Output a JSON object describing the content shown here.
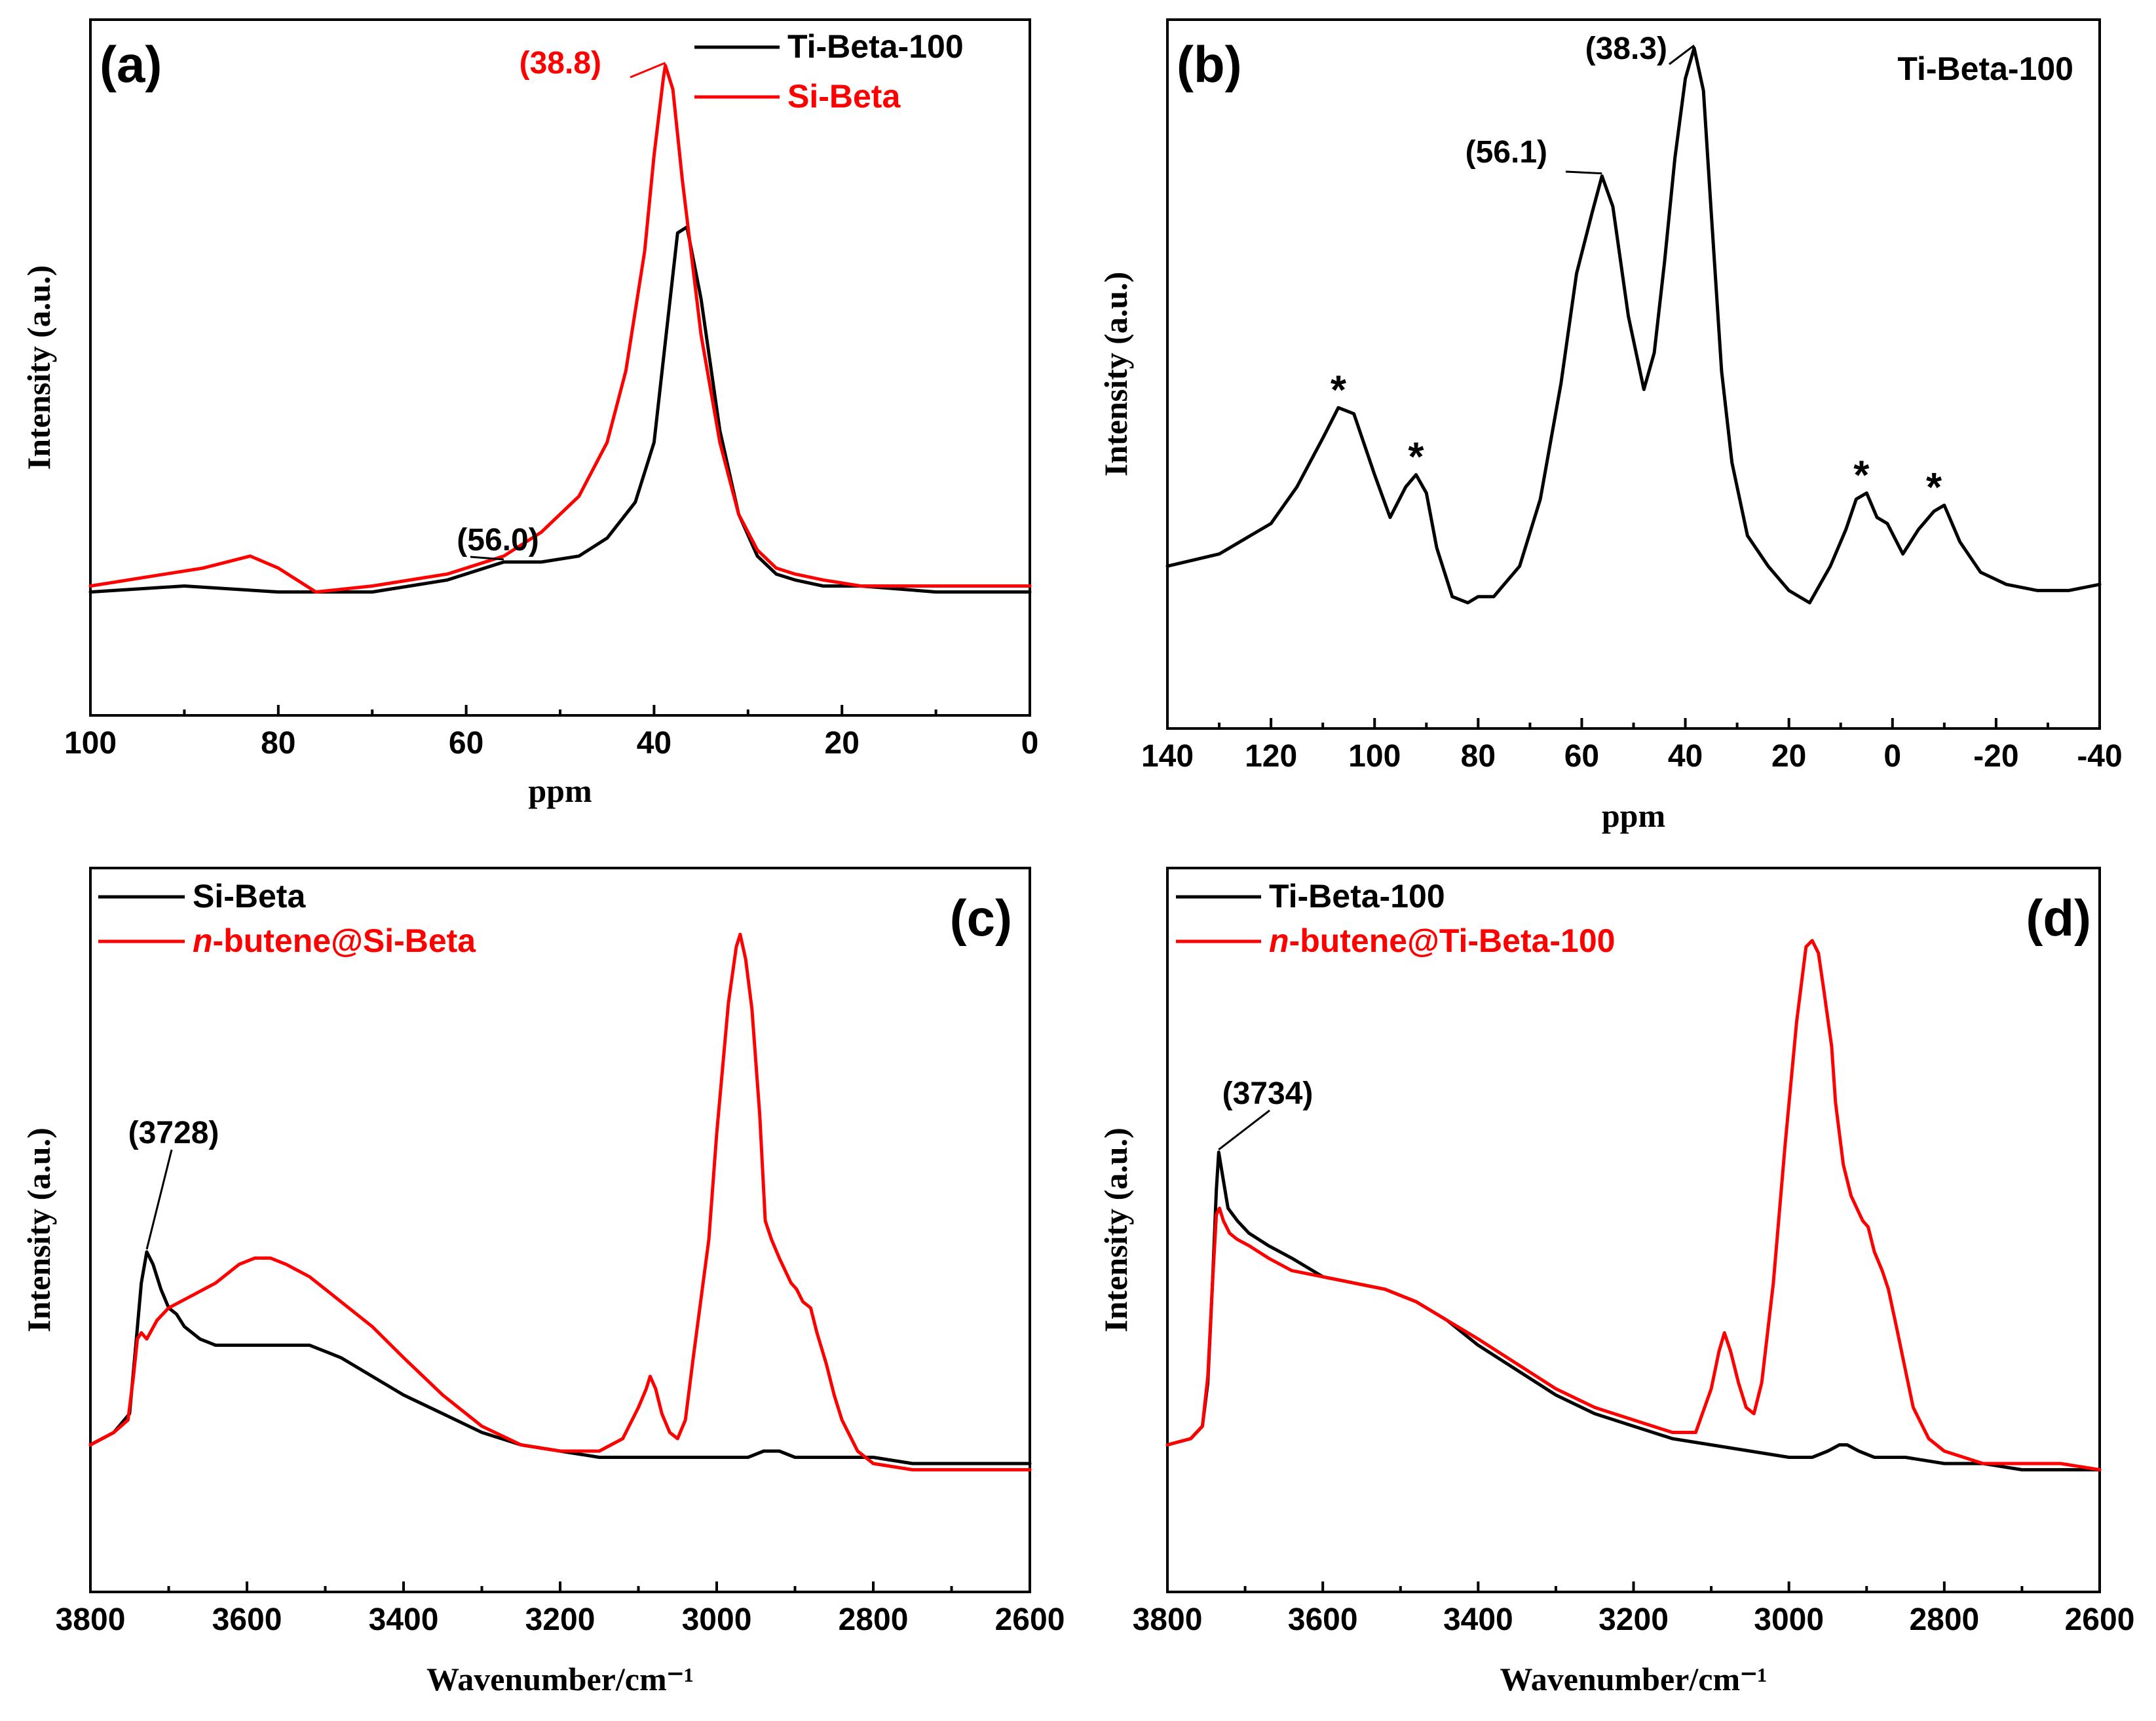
{
  "colors": {
    "black_series": "#000000",
    "red_series": "#ff0000",
    "axis": "#000000"
  },
  "chart_data": [
    {
      "id": "a",
      "type": "line",
      "panel_label": "(a)",
      "title": "",
      "xlabel": "ppm",
      "ylabel": "Intensity (a.u.)",
      "xlim": [
        100,
        0
      ],
      "ylim": [
        0,
        1
      ],
      "xticks": [
        100,
        80,
        60,
        40,
        20,
        0
      ],
      "xtick_labels": [
        "100",
        "80",
        "60",
        "40",
        "20",
        "0"
      ],
      "legend_position": "top-right",
      "grid": false,
      "series": [
        {
          "name": "Ti-Beta-100",
          "color": "#000000",
          "x": [
            100,
            90,
            80,
            70,
            62,
            56,
            52,
            48,
            45,
            42,
            40,
            38.5,
            37.5,
            36.5,
            35,
            33,
            31,
            29,
            27,
            25,
            22,
            18,
            10,
            0
          ],
          "y": [
            0.09,
            0.1,
            0.09,
            0.09,
            0.11,
            0.14,
            0.14,
            0.15,
            0.18,
            0.24,
            0.34,
            0.55,
            0.69,
            0.7,
            0.58,
            0.36,
            0.22,
            0.15,
            0.12,
            0.11,
            0.1,
            0.1,
            0.09,
            0.09
          ]
        },
        {
          "name": "Si-Beta",
          "color": "#ff0000",
          "x": [
            100,
            92,
            88,
            83,
            80,
            76,
            70,
            62,
            56,
            52,
            48,
            45,
            43,
            41,
            40,
            39,
            38.8,
            38,
            37,
            35,
            33,
            31,
            29,
            27,
            25,
            22,
            18,
            10,
            0
          ],
          "y": [
            0.1,
            0.12,
            0.13,
            0.15,
            0.13,
            0.09,
            0.1,
            0.12,
            0.15,
            0.19,
            0.25,
            0.34,
            0.46,
            0.66,
            0.82,
            0.95,
            0.97,
            0.93,
            0.78,
            0.52,
            0.34,
            0.22,
            0.16,
            0.13,
            0.12,
            0.11,
            0.1,
            0.1,
            0.1
          ]
        }
      ],
      "annotations": [
        {
          "text": "(38.8)",
          "x": 38.8,
          "y": 0.97,
          "color": "#ff0000"
        },
        {
          "text": "(56.0)",
          "x": 56.0,
          "y": 0.14,
          "color": "#000000"
        }
      ]
    },
    {
      "id": "b",
      "type": "line",
      "panel_label": "(b)",
      "title": "",
      "xlabel": "ppm",
      "ylabel": "Intensity (a.u.)",
      "xlim": [
        140,
        -40
      ],
      "ylim": [
        0,
        1
      ],
      "xticks": [
        140,
        120,
        100,
        80,
        60,
        40,
        20,
        0,
        -20,
        -40
      ],
      "xtick_labels": [
        "140",
        "120",
        "100",
        "80",
        "60",
        "40",
        "20",
        "0",
        "-20",
        "-40"
      ],
      "legend_position": "top-right",
      "legend_entries": [
        "Ti-Beta-100"
      ],
      "grid": false,
      "series": [
        {
          "name": "Ti-Beta-100",
          "color": "#000000",
          "x": [
            140,
            130,
            120,
            115,
            110,
            107,
            104,
            100,
            97,
            94,
            92,
            90,
            88,
            85,
            82,
            80,
            77,
            72,
            68,
            64,
            61,
            58,
            56.1,
            54,
            51,
            48,
            46,
            44,
            42,
            40,
            38.3,
            36.5,
            35,
            33,
            31,
            28,
            24,
            20,
            16,
            12,
            9,
            7,
            5,
            3,
            1,
            -2,
            -5,
            -8,
            -10,
            -13,
            -17,
            -22,
            -28,
            -34,
            -40
          ],
          "y": [
            0.15,
            0.17,
            0.22,
            0.28,
            0.36,
            0.41,
            0.4,
            0.3,
            0.23,
            0.28,
            0.3,
            0.27,
            0.18,
            0.1,
            0.09,
            0.1,
            0.1,
            0.15,
            0.26,
            0.45,
            0.63,
            0.73,
            0.79,
            0.74,
            0.56,
            0.44,
            0.5,
            0.65,
            0.82,
            0.95,
            1.0,
            0.93,
            0.73,
            0.47,
            0.32,
            0.2,
            0.15,
            0.11,
            0.09,
            0.15,
            0.21,
            0.26,
            0.27,
            0.23,
            0.22,
            0.17,
            0.21,
            0.24,
            0.25,
            0.19,
            0.14,
            0.12,
            0.11,
            0.11,
            0.12
          ]
        }
      ],
      "annotations": [
        {
          "text": "(38.3)",
          "x": 38.3,
          "y": 1.0,
          "color": "#000000"
        },
        {
          "text": "(56.1)",
          "x": 56.1,
          "y": 0.79,
          "color": "#000000"
        }
      ],
      "star_markers": [
        {
          "text": "*",
          "x": 107,
          "y": 0.41
        },
        {
          "text": "*",
          "x": 92,
          "y": 0.3
        },
        {
          "text": "*",
          "x": 6,
          "y": 0.27
        },
        {
          "text": "*",
          "x": -8,
          "y": 0.25
        }
      ]
    },
    {
      "id": "c",
      "type": "line",
      "panel_label": "(c)",
      "title": "",
      "xlabel": "Wavenumber/cm⁻¹",
      "ylabel": "Intensity (a.u.)",
      "xlim": [
        3800,
        2600
      ],
      "ylim": [
        0,
        1
      ],
      "xticks": [
        3800,
        3600,
        3400,
        3200,
        3000,
        2800,
        2600
      ],
      "xtick_labels": [
        "3800",
        "3600",
        "3400",
        "3200",
        "3000",
        "2800",
        "2600"
      ],
      "legend_position": "top-left",
      "grid": false,
      "series": [
        {
          "name": "Si-Beta",
          "label_prefix": "",
          "label_main": "Si-Beta",
          "color": "#000000",
          "x": [
            3800,
            3770,
            3750,
            3742,
            3735,
            3728,
            3720,
            3710,
            3700,
            3690,
            3680,
            3660,
            3640,
            3600,
            3560,
            3520,
            3480,
            3440,
            3400,
            3350,
            3300,
            3250,
            3200,
            3150,
            3100,
            3050,
            3000,
            2960,
            2940,
            2930,
            2920,
            2900,
            2880,
            2860,
            2840,
            2800,
            2750,
            2700,
            2650,
            2600
          ],
          "y": [
            0.12,
            0.14,
            0.17,
            0.28,
            0.38,
            0.43,
            0.41,
            0.37,
            0.34,
            0.33,
            0.31,
            0.29,
            0.28,
            0.28,
            0.28,
            0.28,
            0.26,
            0.23,
            0.2,
            0.17,
            0.14,
            0.12,
            0.11,
            0.1,
            0.1,
            0.1,
            0.1,
            0.1,
            0.11,
            0.11,
            0.11,
            0.1,
            0.1,
            0.1,
            0.1,
            0.1,
            0.09,
            0.09,
            0.09,
            0.09
          ]
        },
        {
          "name": "n-butene@Si-Beta",
          "label_prefix": "n",
          "label_main": "-butene@Si-Beta",
          "color": "#ff0000",
          "x": [
            3800,
            3770,
            3752,
            3745,
            3740,
            3735,
            3728,
            3715,
            3700,
            3670,
            3640,
            3610,
            3590,
            3570,
            3550,
            3520,
            3480,
            3440,
            3400,
            3350,
            3300,
            3250,
            3200,
            3150,
            3120,
            3100,
            3090,
            3085,
            3078,
            3070,
            3060,
            3050,
            3040,
            3030,
            3010,
            3000,
            2985,
            2975,
            2970,
            2963,
            2955,
            2945,
            2938,
            2930,
            2920,
            2905,
            2898,
            2890,
            2880,
            2872,
            2860,
            2850,
            2840,
            2820,
            2800,
            2750,
            2700,
            2650,
            2600
          ],
          "y": [
            0.12,
            0.14,
            0.16,
            0.23,
            0.29,
            0.3,
            0.29,
            0.32,
            0.34,
            0.36,
            0.38,
            0.41,
            0.42,
            0.42,
            0.41,
            0.39,
            0.35,
            0.31,
            0.26,
            0.2,
            0.15,
            0.12,
            0.11,
            0.11,
            0.13,
            0.18,
            0.21,
            0.23,
            0.21,
            0.17,
            0.14,
            0.13,
            0.16,
            0.26,
            0.45,
            0.62,
            0.83,
            0.92,
            0.94,
            0.9,
            0.82,
            0.65,
            0.48,
            0.45,
            0.42,
            0.38,
            0.37,
            0.35,
            0.34,
            0.3,
            0.25,
            0.2,
            0.16,
            0.11,
            0.09,
            0.08,
            0.08,
            0.08,
            0.08
          ]
        }
      ],
      "annotations": [
        {
          "text": "(3728)",
          "x": 3728,
          "y": 0.43,
          "color": "#000000"
        }
      ]
    },
    {
      "id": "d",
      "type": "line",
      "panel_label": "(d)",
      "title": "",
      "xlabel": "Wavenumber/cm⁻¹",
      "ylabel": "Intensity (a.u.)",
      "xlim": [
        3800,
        2600
      ],
      "ylim": [
        0,
        1
      ],
      "xticks": [
        3800,
        3600,
        3400,
        3200,
        3000,
        2800,
        2600
      ],
      "xtick_labels": [
        "3800",
        "3600",
        "3400",
        "3200",
        "3000",
        "2800",
        "2600"
      ],
      "legend_position": "top-left",
      "grid": false,
      "series": [
        {
          "name": "Ti-Beta-100",
          "label_prefix": "",
          "label_main": "Ti-Beta-100",
          "color": "#000000",
          "x": [
            3800,
            3770,
            3755,
            3748,
            3742,
            3737,
            3734,
            3730,
            3722,
            3710,
            3695,
            3670,
            3640,
            3600,
            3560,
            3520,
            3480,
            3440,
            3400,
            3350,
            3300,
            3250,
            3200,
            3150,
            3100,
            3050,
            3000,
            2970,
            2950,
            2935,
            2925,
            2910,
            2890,
            2870,
            2850,
            2800,
            2750,
            2700,
            2650,
            2600
          ],
          "y": [
            0.12,
            0.13,
            0.15,
            0.22,
            0.38,
            0.53,
            0.59,
            0.56,
            0.5,
            0.48,
            0.46,
            0.44,
            0.42,
            0.39,
            0.38,
            0.37,
            0.35,
            0.32,
            0.28,
            0.24,
            0.2,
            0.17,
            0.15,
            0.13,
            0.12,
            0.11,
            0.1,
            0.1,
            0.11,
            0.12,
            0.12,
            0.11,
            0.1,
            0.1,
            0.1,
            0.09,
            0.09,
            0.08,
            0.08,
            0.08
          ]
        },
        {
          "name": "n-butene@Ti-Beta-100",
          "label_prefix": "n",
          "label_main": "-butene@Ti-Beta-100",
          "color": "#ff0000",
          "x": [
            3800,
            3770,
            3755,
            3748,
            3742,
            3737,
            3733,
            3728,
            3720,
            3710,
            3695,
            3670,
            3640,
            3600,
            3560,
            3520,
            3480,
            3440,
            3400,
            3350,
            3300,
            3250,
            3200,
            3150,
            3120,
            3100,
            3090,
            3083,
            3075,
            3065,
            3055,
            3045,
            3035,
            3020,
            3005,
            2990,
            2978,
            2970,
            2962,
            2955,
            2945,
            2940,
            2930,
            2920,
            2905,
            2898,
            2890,
            2880,
            2872,
            2860,
            2850,
            2840,
            2820,
            2800,
            2750,
            2700,
            2650,
            2600
          ],
          "y": [
            0.12,
            0.13,
            0.15,
            0.23,
            0.38,
            0.49,
            0.5,
            0.48,
            0.46,
            0.45,
            0.44,
            0.42,
            0.4,
            0.39,
            0.38,
            0.37,
            0.35,
            0.32,
            0.29,
            0.25,
            0.21,
            0.18,
            0.16,
            0.14,
            0.14,
            0.21,
            0.27,
            0.3,
            0.27,
            0.22,
            0.18,
            0.17,
            0.22,
            0.38,
            0.6,
            0.8,
            0.92,
            0.93,
            0.91,
            0.85,
            0.76,
            0.67,
            0.57,
            0.52,
            0.48,
            0.47,
            0.43,
            0.4,
            0.37,
            0.3,
            0.24,
            0.18,
            0.13,
            0.11,
            0.09,
            0.09,
            0.09,
            0.08
          ]
        }
      ],
      "annotations": [
        {
          "text": "(3734)",
          "x": 3734,
          "y": 0.59,
          "color": "#000000"
        }
      ]
    }
  ]
}
